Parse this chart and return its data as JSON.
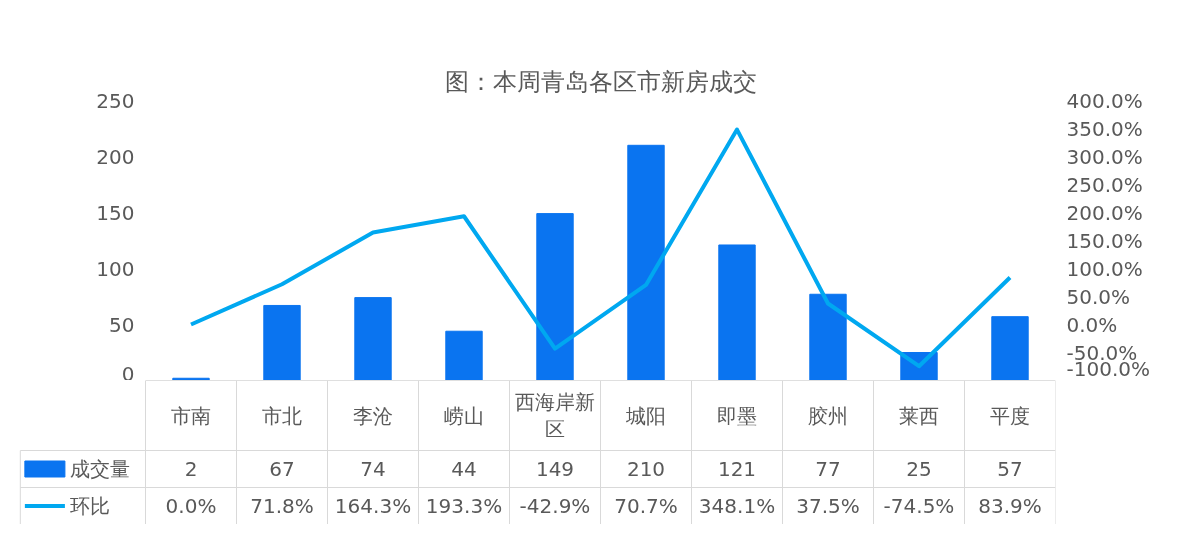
{
  "chart_data": {
    "type": "bar",
    "title": "图：本周青岛各区市新房成交",
    "categories": [
      "市南",
      "市北",
      "李沧",
      "崂山",
      "西海岸新区",
      "城阳",
      "即墨",
      "胶州",
      "莱西",
      "平度"
    ],
    "series": [
      {
        "name": "成交量",
        "color": "#0a74f0",
        "values": [
          2,
          67,
          74,
          44,
          149,
          210,
          121,
          77,
          25,
          57
        ],
        "value_labels": [
          "2",
          "67",
          "74",
          "44",
          "149",
          "210",
          "121",
          "77",
          "25",
          "57"
        ]
      },
      {
        "name": "环比",
        "type": "line",
        "axis": "y2",
        "color": "#00a8f0",
        "values": [
          0.0,
          71.8,
          164.3,
          193.3,
          -42.9,
          70.7,
          348.1,
          37.5,
          -74.5,
          83.9
        ],
        "value_labels": [
          "0.0%",
          "71.8%",
          "164.3%",
          "193.3%",
          "-42.9%",
          "70.7%",
          "348.1%",
          "37.5%",
          "-74.5%",
          "83.9%"
        ]
      }
    ],
    "ylim": [
      0,
      250
    ],
    "yticks": [
      0,
      50,
      100,
      150,
      200,
      250
    ],
    "y2lim": [
      -100,
      400
    ],
    "y2ticks": [
      {
        "value": -100,
        "label": "-100.0%"
      },
      {
        "value": -50,
        "label": "-50.0%"
      },
      {
        "value": 0,
        "label": "0.0%"
      },
      {
        "value": 50,
        "label": "50.0%"
      },
      {
        "value": 100,
        "label": "100.0%"
      },
      {
        "value": 150,
        "label": "150.0%"
      },
      {
        "value": 200,
        "label": "200.0%"
      },
      {
        "value": 250,
        "label": "250.0%"
      },
      {
        "value": 300,
        "label": "300.0%"
      },
      {
        "value": 350,
        "label": "350.0%"
      },
      {
        "value": 400,
        "label": "400.0%"
      }
    ],
    "legend": "bottom",
    "grid": false
  }
}
